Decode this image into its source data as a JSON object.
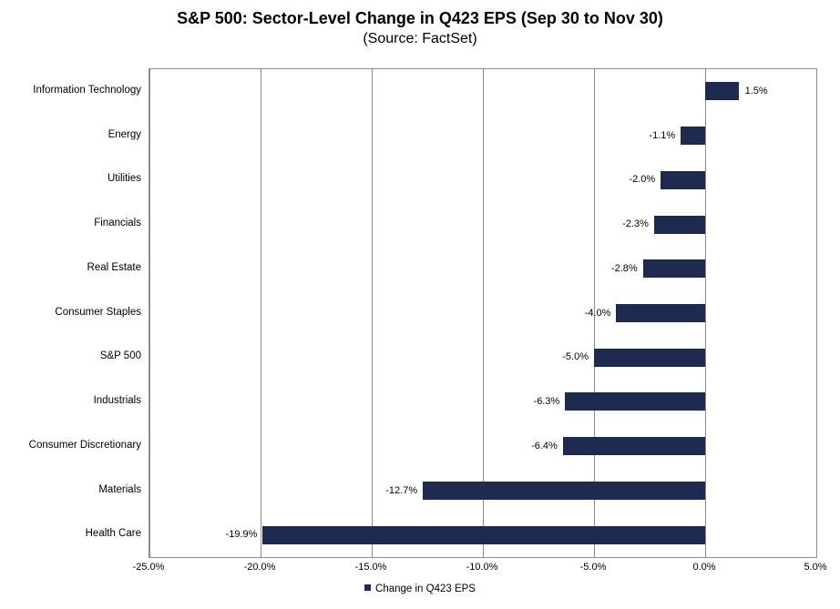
{
  "chart_data": {
    "type": "bar",
    "orientation": "horizontal",
    "title": "S&P 500: Sector-Level Change in Q423 EPS (Sep 30 to Nov 30)",
    "subtitle": "(Source: FactSet)",
    "legend_label": "Change in Q423 EPS",
    "legend_position": "bottom",
    "categories": [
      "Information Technology",
      "Energy",
      "Utilities",
      "Financials",
      "Real Estate",
      "Consumer Staples",
      "S&P 500",
      "Industrials",
      "Consumer Discretionary",
      "Materials",
      "Health Care"
    ],
    "values": [
      1.5,
      -1.1,
      -2.0,
      -2.3,
      -2.8,
      -4.0,
      -5.0,
      -6.3,
      -6.4,
      -12.7,
      -19.9
    ],
    "value_labels": [
      "1.5%",
      "-1.1%",
      "-2.0%",
      "-2.3%",
      "-2.8%",
      "-4.0%",
      "-5.0%",
      "-6.3%",
      "-6.4%",
      "-12.7%",
      "-19.9%"
    ],
    "x_ticks": [
      -25,
      -20,
      -15,
      -10,
      -5,
      0,
      5
    ],
    "x_tick_labels": [
      "-25.0%",
      "-20.0%",
      "-15.0%",
      "-10.0%",
      "-5.0%",
      "0.0%",
      "5.0%"
    ],
    "xlim": [
      -25,
      5
    ],
    "grid": true,
    "colors": {
      "bar": "#1E2A4F",
      "gridline": "#8C8C8C",
      "plot_border": "#8C8C8C",
      "text": "#000000"
    }
  }
}
